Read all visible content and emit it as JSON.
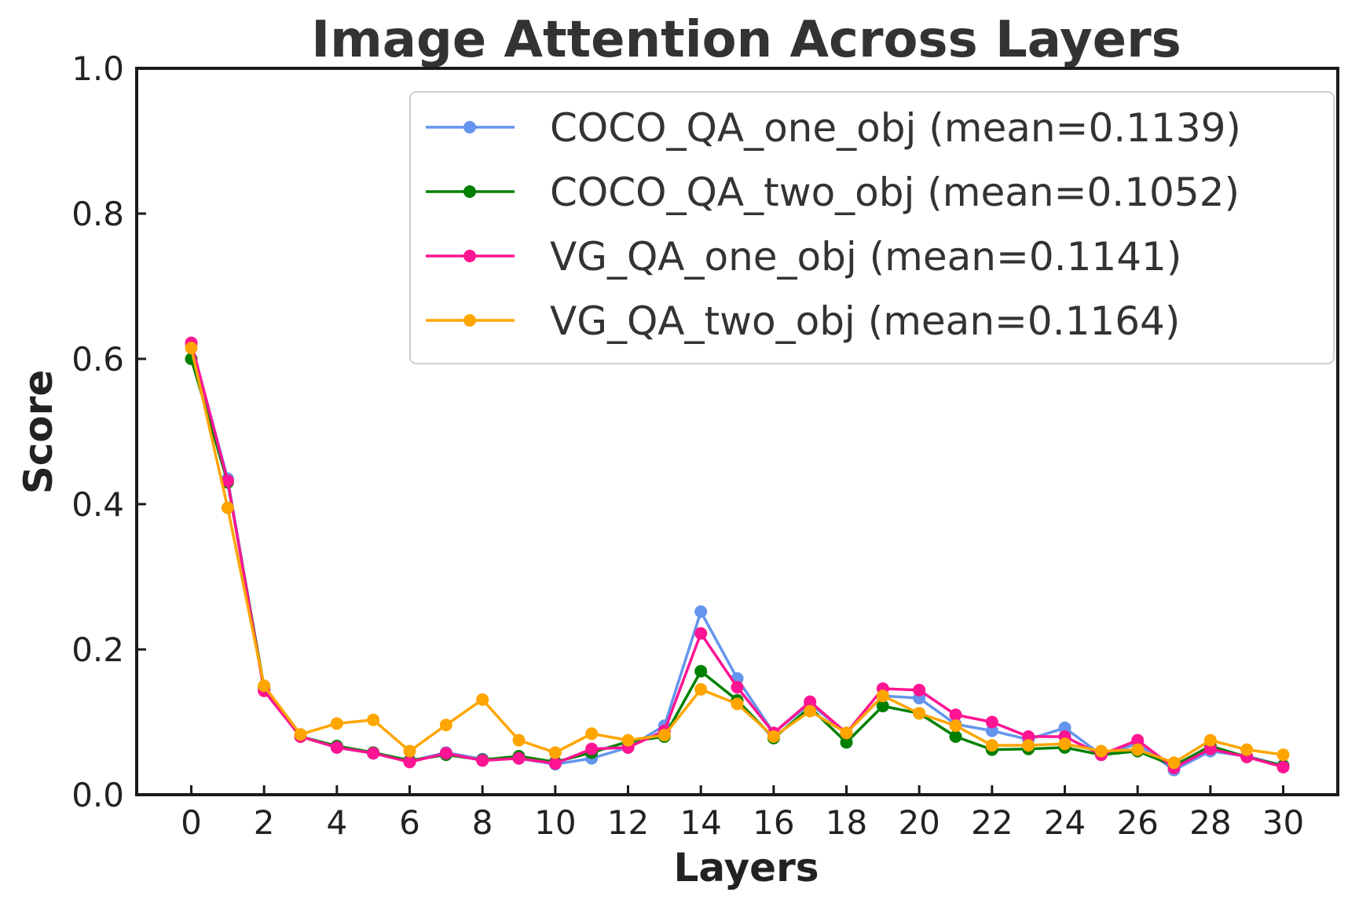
{
  "chart_data": {
    "type": "line",
    "title": "Image Attention Across Layers",
    "xlabel": "Layers",
    "ylabel": "Score",
    "xlim": [
      -1.5,
      31.5
    ],
    "ylim": [
      0.0,
      1.0
    ],
    "x_ticks": [
      "0",
      "2",
      "4",
      "6",
      "8",
      "10",
      "12",
      "14",
      "16",
      "18",
      "20",
      "22",
      "24",
      "26",
      "28",
      "30"
    ],
    "y_ticks": [
      "0.0",
      "0.2",
      "0.4",
      "0.6",
      "0.8",
      "1.0"
    ],
    "grid": false,
    "legend_position": "top-right",
    "x": [
      0,
      1,
      2,
      3,
      4,
      5,
      6,
      7,
      8,
      9,
      10,
      11,
      12,
      13,
      14,
      15,
      16,
      17,
      18,
      19,
      20,
      21,
      22,
      23,
      24,
      25,
      26,
      27,
      28,
      29,
      30
    ],
    "series": [
      {
        "name": "COCO_QA_one_obj (mean=0.1139)",
        "color": "#6495ED",
        "values": [
          0.62,
          0.435,
          0.145,
          0.08,
          0.065,
          0.057,
          0.046,
          0.058,
          0.049,
          0.05,
          0.042,
          0.05,
          0.065,
          0.095,
          0.252,
          0.16,
          0.085,
          0.125,
          0.085,
          0.136,
          0.133,
          0.097,
          0.088,
          0.076,
          0.092,
          0.055,
          0.07,
          0.034,
          0.06,
          0.053,
          0.04
        ]
      },
      {
        "name": "COCO_QA_two_obj (mean=0.1052)",
        "color": "#008000",
        "values": [
          0.6,
          0.43,
          0.148,
          0.08,
          0.067,
          0.058,
          0.047,
          0.055,
          0.048,
          0.053,
          0.045,
          0.058,
          0.073,
          0.08,
          0.17,
          0.13,
          0.078,
          0.12,
          0.072,
          0.122,
          0.112,
          0.08,
          0.062,
          0.063,
          0.065,
          0.055,
          0.06,
          0.04,
          0.067,
          0.052,
          0.04
        ]
      },
      {
        "name": "VG_QA_one_obj (mean=0.1141)",
        "color": "#FF1493",
        "values": [
          0.622,
          0.432,
          0.143,
          0.08,
          0.065,
          0.057,
          0.045,
          0.057,
          0.047,
          0.05,
          0.043,
          0.063,
          0.065,
          0.088,
          0.222,
          0.148,
          0.085,
          0.128,
          0.085,
          0.146,
          0.144,
          0.11,
          0.1,
          0.08,
          0.08,
          0.055,
          0.075,
          0.037,
          0.063,
          0.052,
          0.038
        ]
      },
      {
        "name": "VG_QA_two_obj (mean=0.1164)",
        "color": "#FFA500",
        "values": [
          0.615,
          0.395,
          0.15,
          0.083,
          0.098,
          0.103,
          0.06,
          0.096,
          0.131,
          0.075,
          0.058,
          0.084,
          0.075,
          0.082,
          0.145,
          0.125,
          0.08,
          0.115,
          0.085,
          0.136,
          0.112,
          0.095,
          0.068,
          0.068,
          0.07,
          0.06,
          0.062,
          0.044,
          0.075,
          0.062,
          0.055
        ]
      }
    ]
  }
}
